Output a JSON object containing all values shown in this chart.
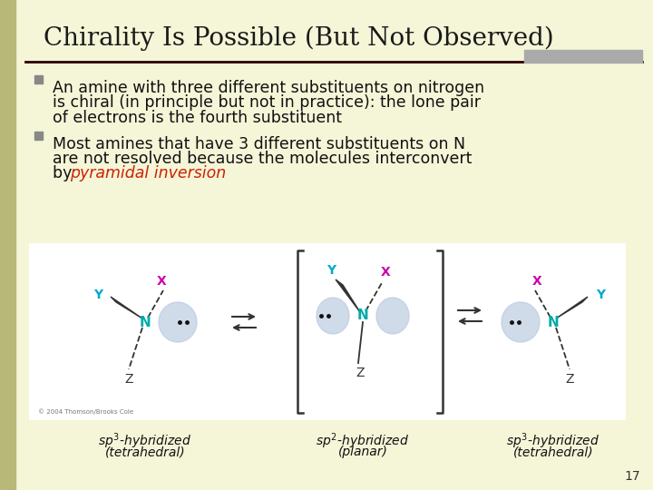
{
  "title": "Chirality Is Possible (But Not Observed)",
  "title_fontsize": 20,
  "title_color": "#1a1a1a",
  "title_font": "serif",
  "bg_color": "#f5f5d8",
  "left_bar_color": "#b8b878",
  "separator_color": "#2a0000",
  "bullet_color": "#888888",
  "bullet1_line1": "An amine with three different substituents on nitrogen",
  "bullet1_line2": "is chiral (in principle but not in practice): the lone pair",
  "bullet1_line3": "of electrons is the fourth substituent",
  "bullet2_line1": "Most amines that have 3 different substituents on N",
  "bullet2_line2": "are not resolved because the molecules interconvert",
  "bullet2_line3_black": "by ",
  "bullet2_line3_red": "pyramidal inversion",
  "text_fontsize": 12.5,
  "text_color": "#111111",
  "red_italic_color": "#cc2200",
  "page_number": "17",
  "diagram_bg": "#ffffff",
  "N_color": "#00aaaa",
  "X_color": "#cc00aa",
  "Y_color": "#00aacc",
  "Z_color": "#333333",
  "orbital_color": "#b8c8e0",
  "line_color": "#333333",
  "gray_rect_color": "#aaaaaa",
  "copyright_text": "© 2004 Thomson/Brooks Cole"
}
